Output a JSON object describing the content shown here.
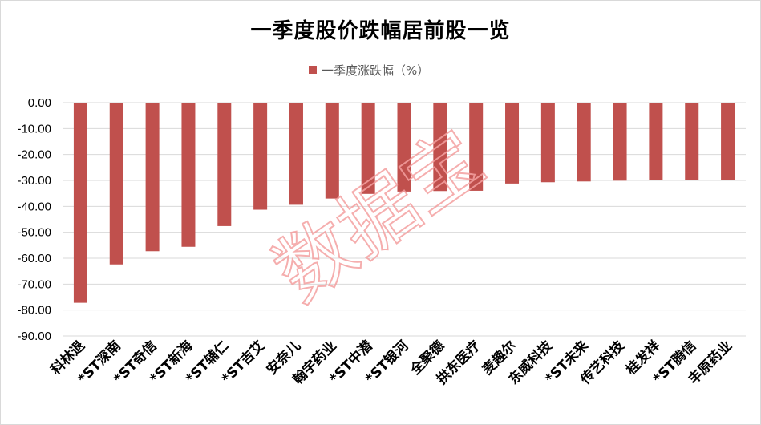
{
  "chart_data": {
    "type": "bar",
    "title": "一季度股价跌幅居前股一览",
    "xlabel": "",
    "ylabel": "",
    "ylim": [
      -90,
      0
    ],
    "yticks": [
      0,
      -10,
      -20,
      -30,
      -40,
      -50,
      -60,
      -70,
      -80,
      -90
    ],
    "ytick_labels": [
      "0.00",
      "-10.00",
      "-20.00",
      "-30.00",
      "-40.00",
      "-50.00",
      "-60.00",
      "-70.00",
      "-80.00",
      "-90.00"
    ],
    "grid": true,
    "legend_position": "top",
    "categories": [
      "科林退",
      "*ST深南",
      "*ST奇信",
      "*ST新海",
      "*ST辅仁",
      "*ST吉艾",
      "安奈儿",
      "翰宇药业",
      "*ST中潜",
      "*ST银河",
      "全聚德",
      "拱东医疗",
      "麦趣尔",
      "东威科技",
      "*ST未来",
      "传艺科技",
      "桂发祥",
      "*ST腾信",
      "丰原药业"
    ],
    "series": [
      {
        "name": "一季度涨跌幅（%）",
        "color": "#c0504d",
        "values": [
          -77.2,
          -62.4,
          -57.3,
          -55.6,
          -47.6,
          -41.3,
          -39.4,
          -37.0,
          -35.2,
          -34.3,
          -34.1,
          -34.0,
          -31.2,
          -30.7,
          -30.4,
          -30.1,
          -29.9,
          -29.9,
          -29.9
        ]
      }
    ]
  },
  "watermark": {
    "text": "数据宝",
    "color": "#f4a0a0"
  }
}
